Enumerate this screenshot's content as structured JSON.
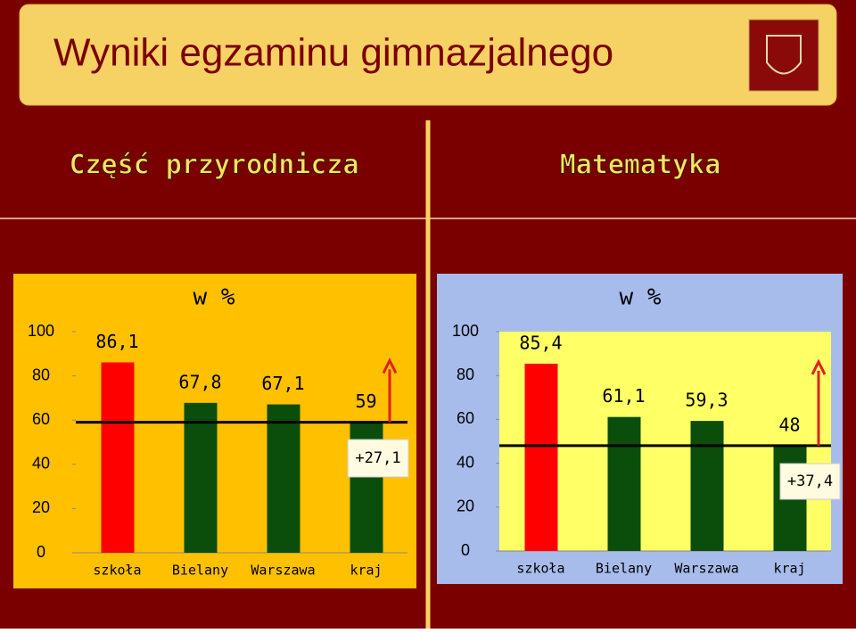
{
  "header": {
    "title": "Wyniki egzaminu gimnazjalnego"
  },
  "sections": [
    "Część przyrodnicza",
    "Matematyka"
  ],
  "chart_data": [
    {
      "type": "bar",
      "subtitle": "w %",
      "categories": [
        "szkoła",
        "Bielany",
        "Warszawa",
        "kraj"
      ],
      "values": [
        86.1,
        67.8,
        67.1,
        59
      ],
      "value_labels": [
        "86,1",
        "67,8",
        "67,1",
        "59"
      ],
      "colors": [
        "#ff0000",
        "#0b4d0b",
        "#0b4d0b",
        "#0b4d0b"
      ],
      "ylim": [
        0,
        100
      ],
      "yticks": [
        0,
        20,
        40,
        60,
        80,
        100
      ],
      "annotation": "+27,1"
    },
    {
      "type": "bar",
      "subtitle": "w %",
      "categories": [
        "szkoła",
        "Bielany",
        "Warszawa",
        "kraj"
      ],
      "values": [
        85.4,
        61.1,
        59.3,
        48
      ],
      "value_labels": [
        "85,4",
        "61,1",
        "59,3",
        "48"
      ],
      "colors": [
        "#ff0000",
        "#0b4d0b",
        "#0b4d0b",
        "#0b4d0b"
      ],
      "ylim": [
        0,
        100
      ],
      "yticks": [
        0,
        20,
        40,
        60,
        80,
        100
      ],
      "annotation": "+37,4"
    }
  ]
}
